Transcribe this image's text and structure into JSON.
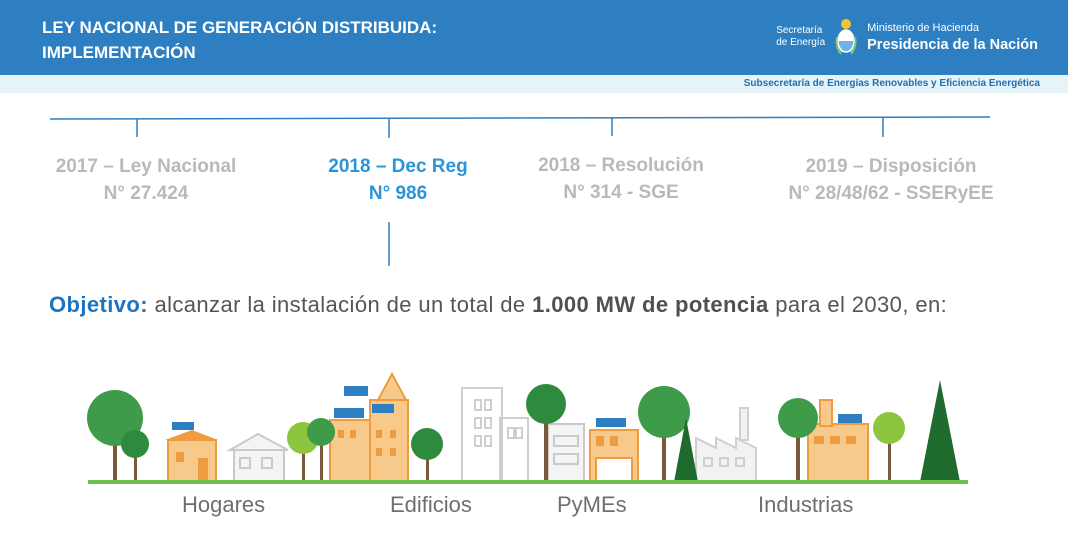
{
  "header": {
    "title_line1": "LEY NACIONAL DE GENERACIÓN DISTRIBUIDA:",
    "title_line2": "IMPLEMENTACIÓN",
    "secretaria_line1": "Secretaría",
    "secretaria_line2": "de Energía",
    "crest_icon": "argentina-coat-of-arms-icon",
    "ministerio": "Ministerio de Hacienda",
    "presidencia": "Presidencia de la Nación",
    "colors": {
      "band": "#2d7fc1",
      "subband": "#e6f3f8"
    }
  },
  "subheader": "Subsecretaría de Energías Renovables y Eficiencia Energética",
  "timeline": [
    {
      "line1": "2017 – Ley Nacional",
      "line2": "N° 27.424",
      "active": false
    },
    {
      "line1": "2018 – Dec Reg",
      "line2": "N° 986",
      "active": true
    },
    {
      "line1": "2018 – Resolución",
      "line2": "N° 314 - SGE",
      "active": false
    },
    {
      "line1": "2019 – Disposición",
      "line2": "N° 28/48/62 - SSERyEE",
      "active": false
    }
  ],
  "timeline_colors": {
    "active": "#2a95d8",
    "inactive": "#b9b9b9"
  },
  "objective": {
    "label": "Objetivo:",
    "text_before": " alcanzar la instalación de un total de ",
    "bold": "1.000 MW de potencia",
    "text_after": " para el 2030, en:"
  },
  "categories": {
    "hogares": "Hogares",
    "edificios": "Edificios",
    "pymes": "PyMEs",
    "industrias": "Industrias"
  },
  "illustration_icons": [
    "tree-icon",
    "house-icon",
    "building-icon",
    "solar-panel-icon",
    "factory-icon",
    "shop-icon"
  ]
}
